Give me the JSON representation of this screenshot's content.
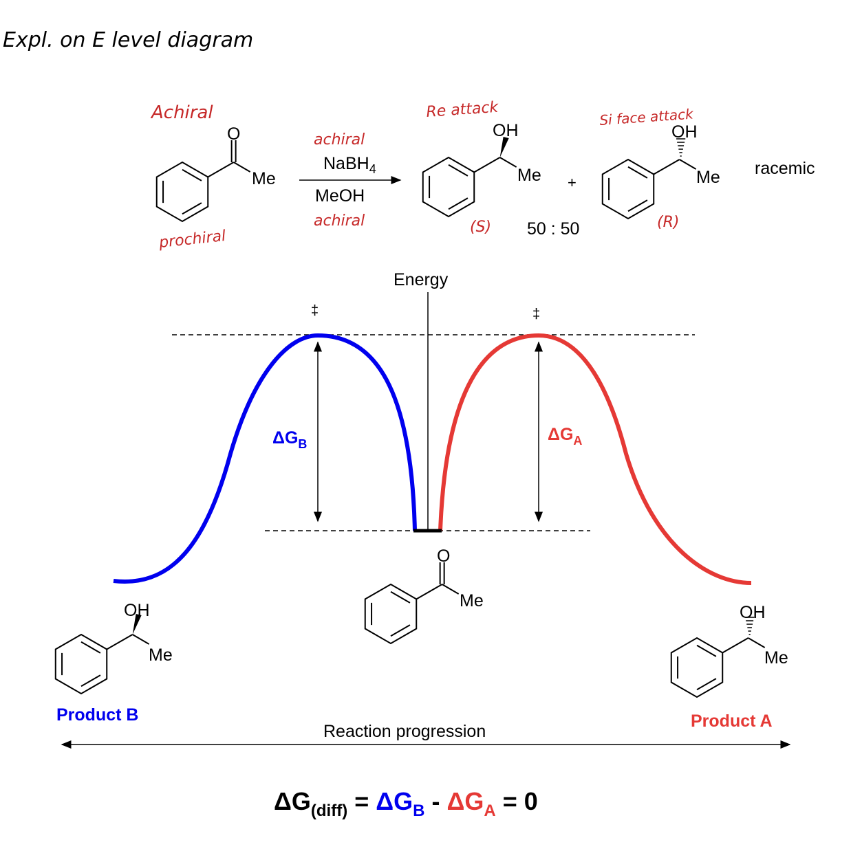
{
  "header": {
    "title": "Expl. on E level diagram"
  },
  "reaction": {
    "reactant": {
      "annotation_top": "Achiral",
      "annotation_bottom": "prochiral",
      "atom_o": "O",
      "group_me": "Me"
    },
    "conditions": {
      "annotation_top": "achiral",
      "reagent": "NaBH",
      "reagent_subscript": "4",
      "solvent": "MeOH",
      "annotation_bottom": "achiral"
    },
    "product_s": {
      "annotation": "Re attack",
      "group_oh": "OH",
      "group_me": "Me",
      "config": "(S)"
    },
    "plus": "+",
    "product_r": {
      "annotation": "Si face attack",
      "group_oh": "OH",
      "group_me": "Me",
      "config": "(R)"
    },
    "ratio": "50 : 50",
    "outcome": "racemic"
  },
  "energy_diagram": {
    "y_axis_label": "Energy",
    "ts_left": "‡",
    "ts_right": "‡",
    "barrier_b": {
      "symbol": "ΔG",
      "subscript": "B"
    },
    "barrier_a": {
      "symbol": "ΔG",
      "subscript": "A"
    },
    "start": {
      "atom_o": "O",
      "group_me": "Me"
    },
    "product_b": {
      "group_oh": "OH",
      "group_me": "Me",
      "label": "Product B"
    },
    "product_a": {
      "group_oh": "OH",
      "group_me": "Me",
      "label": "Product A"
    },
    "x_axis_label": "Reaction progression"
  },
  "equation": {
    "lhs": "ΔG",
    "lhs_subscript": "(diff)",
    "equals": "=",
    "term_b": "ΔG",
    "term_b_subscript": "B",
    "minus": "-",
    "term_a": "ΔG",
    "term_a_subscript": "A",
    "result": "= 0"
  }
}
